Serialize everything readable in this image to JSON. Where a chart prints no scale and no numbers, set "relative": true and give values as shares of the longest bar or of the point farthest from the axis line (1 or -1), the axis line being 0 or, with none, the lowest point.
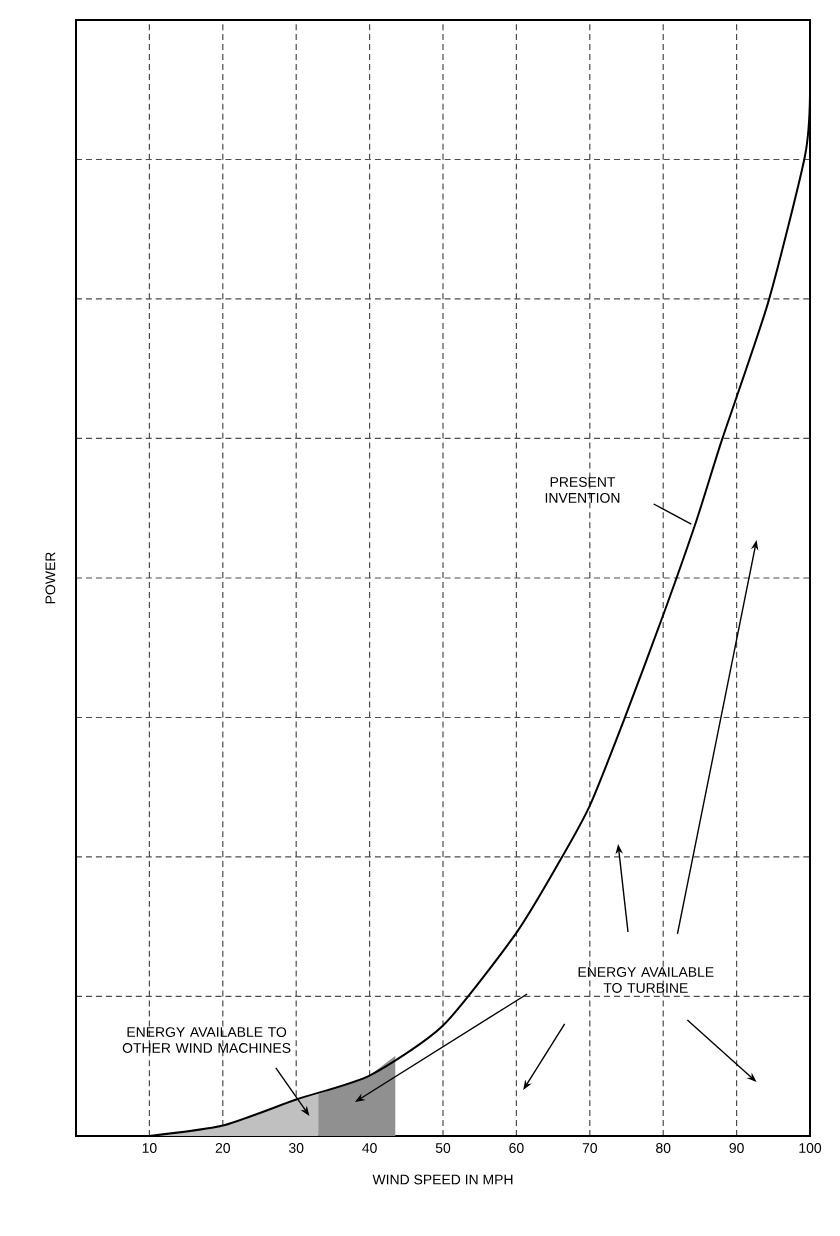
{
  "chart_data": {
    "type": "line",
    "xlabel": "WIND SPEED IN MPH",
    "ylabel": "POWER",
    "relative": true,
    "xlim": [
      0,
      100
    ],
    "xticks": [
      10,
      20,
      30,
      40,
      50,
      60,
      70,
      80,
      90,
      100
    ],
    "grid": true,
    "series": [
      {
        "type": "area",
        "color": "#c0c0c0",
        "x": [
          10,
          20,
          30,
          33
        ],
        "values": [
          0,
          0.01,
          0.035,
          0.04
        ]
      },
      {
        "type": "area",
        "color": "#909090",
        "x": [
          33,
          40,
          43.5
        ],
        "values": [
          0.04,
          0.058,
          0.077
        ]
      },
      {
        "color": "#000000",
        "x": [
          10,
          20,
          30,
          40,
          50,
          60,
          66,
          70,
          74.7,
          80,
          84.5,
          88,
          94.3,
          99.3,
          100
        ],
        "values": [
          0,
          0.01,
          0.035,
          0.058,
          0.106,
          0.195,
          0.265,
          0.317,
          0.4,
          0.5,
          0.59,
          0.668,
          0.8,
          0.94,
          1
        ]
      }
    ],
    "annotations": [
      "PRESENT INVENTION",
      "ENERGY AVAILABLE TO OTHER WIND MACHINES",
      "ENERGY AVAILABLE TO TURBINE"
    ]
  }
}
